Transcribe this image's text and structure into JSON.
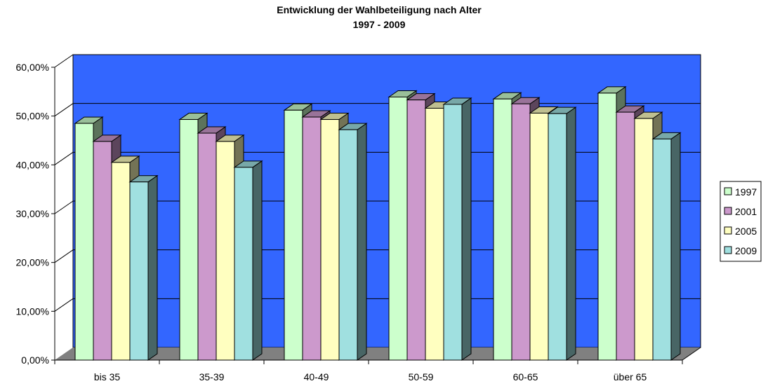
{
  "chart_data": {
    "type": "bar",
    "title": "Entwicklung der Wahlbeteiligung nach Alter",
    "subtitle": "1997 - 2009",
    "categories": [
      "bis 35",
      "35-39",
      "40-49",
      "50-59",
      "60-65",
      "über 65"
    ],
    "series": [
      {
        "name": "1997",
        "color": "#ccffcc",
        "values": [
          48.5,
          49.3,
          51.2,
          53.9,
          53.5,
          54.7
        ]
      },
      {
        "name": "2001",
        "color": "#cc99cc",
        "values": [
          44.8,
          46.5,
          49.8,
          53.3,
          52.5,
          50.8
        ]
      },
      {
        "name": "2005",
        "color": "#ffffc0",
        "values": [
          40.5,
          44.8,
          49.3,
          51.6,
          50.6,
          49.5
        ]
      },
      {
        "name": "2009",
        "color": "#a0e0e0",
        "values": [
          36.5,
          39.5,
          47.2,
          52.4,
          50.5,
          45.3
        ]
      }
    ],
    "yticks": [
      "0,00%",
      "10,00%",
      "20,00%",
      "30,00%",
      "40,00%",
      "50,00%",
      "60,00%"
    ],
    "ylim": [
      0,
      60
    ],
    "grid": true,
    "legend": "right",
    "colors": {
      "wall": "#3366ff",
      "floor": "#808080",
      "gridline": "#000000"
    }
  }
}
